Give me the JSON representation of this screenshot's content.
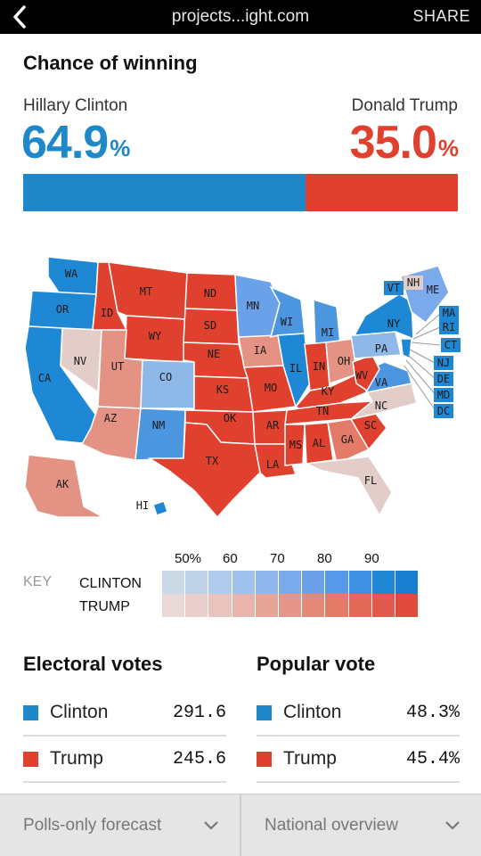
{
  "topbar": {
    "url": "projects...ight.com",
    "share_label": "SHARE",
    "back_icon": "chevron-left-icon"
  },
  "forecast": {
    "title": "Chance of winning",
    "clinton": {
      "name": "Hillary Clinton",
      "pct": "64.9",
      "pct_symbol": "%",
      "value": 0.649,
      "color": "#1f88c9"
    },
    "trump": {
      "name": "Donald Trump",
      "pct": "35.0",
      "pct_symbol": "%",
      "value": 0.35,
      "color": "#e0402e"
    }
  },
  "map": {
    "states": [
      "WA",
      "OR",
      "CA",
      "NV",
      "ID",
      "MT",
      "WY",
      "UT",
      "AZ",
      "CO",
      "NM",
      "ND",
      "SD",
      "NE",
      "KS",
      "OK",
      "TX",
      "MN",
      "IA",
      "MO",
      "AR",
      "LA",
      "WI",
      "IL",
      "MI",
      "IN",
      "OH",
      "KY",
      "TN",
      "MS",
      "AL",
      "GA",
      "FL",
      "SC",
      "NC",
      "VA",
      "WV",
      "PA",
      "NY",
      "VT",
      "NH",
      "ME",
      "MA",
      "RI",
      "CT",
      "NJ",
      "DE",
      "MD",
      "DC",
      "AK",
      "HI"
    ]
  },
  "key": {
    "label": "KEY",
    "clinton_label": "CLINTON",
    "trump_label": "TRUMP",
    "ticks": [
      "50%",
      "60",
      "70",
      "80",
      "90"
    ],
    "clinton_colors": [
      "#cbd8e6",
      "#bfd2e8",
      "#b1cbec",
      "#a0c1ee",
      "#8fb7ee",
      "#7aaaeb",
      "#6aa1e9",
      "#579aea",
      "#3f8fe3",
      "#1f88d5",
      "#1a7fd0"
    ],
    "trump_colors": [
      "#e9d9d6",
      "#ead0cc",
      "#e9c3bd",
      "#e8b4ab",
      "#e7a59a",
      "#e69688",
      "#e58878",
      "#e47a68",
      "#e36a58",
      "#e1594a",
      "#df4a3c"
    ]
  },
  "electoral": {
    "title": "Electoral votes",
    "rows": [
      {
        "name": "Clinton",
        "value": "291.6",
        "color": "#1f88c9"
      },
      {
        "name": "Trump",
        "value": "245.6",
        "color": "#e0402e"
      }
    ]
  },
  "popular": {
    "title": "Popular vote",
    "rows": [
      {
        "name": "Clinton",
        "value": "48.3%",
        "color": "#1f88c9"
      },
      {
        "name": "Trump",
        "value": "45.4%",
        "color": "#e0402e"
      }
    ]
  },
  "bottom": {
    "left_label": "Polls-only forecast",
    "right_label": "National overview"
  }
}
